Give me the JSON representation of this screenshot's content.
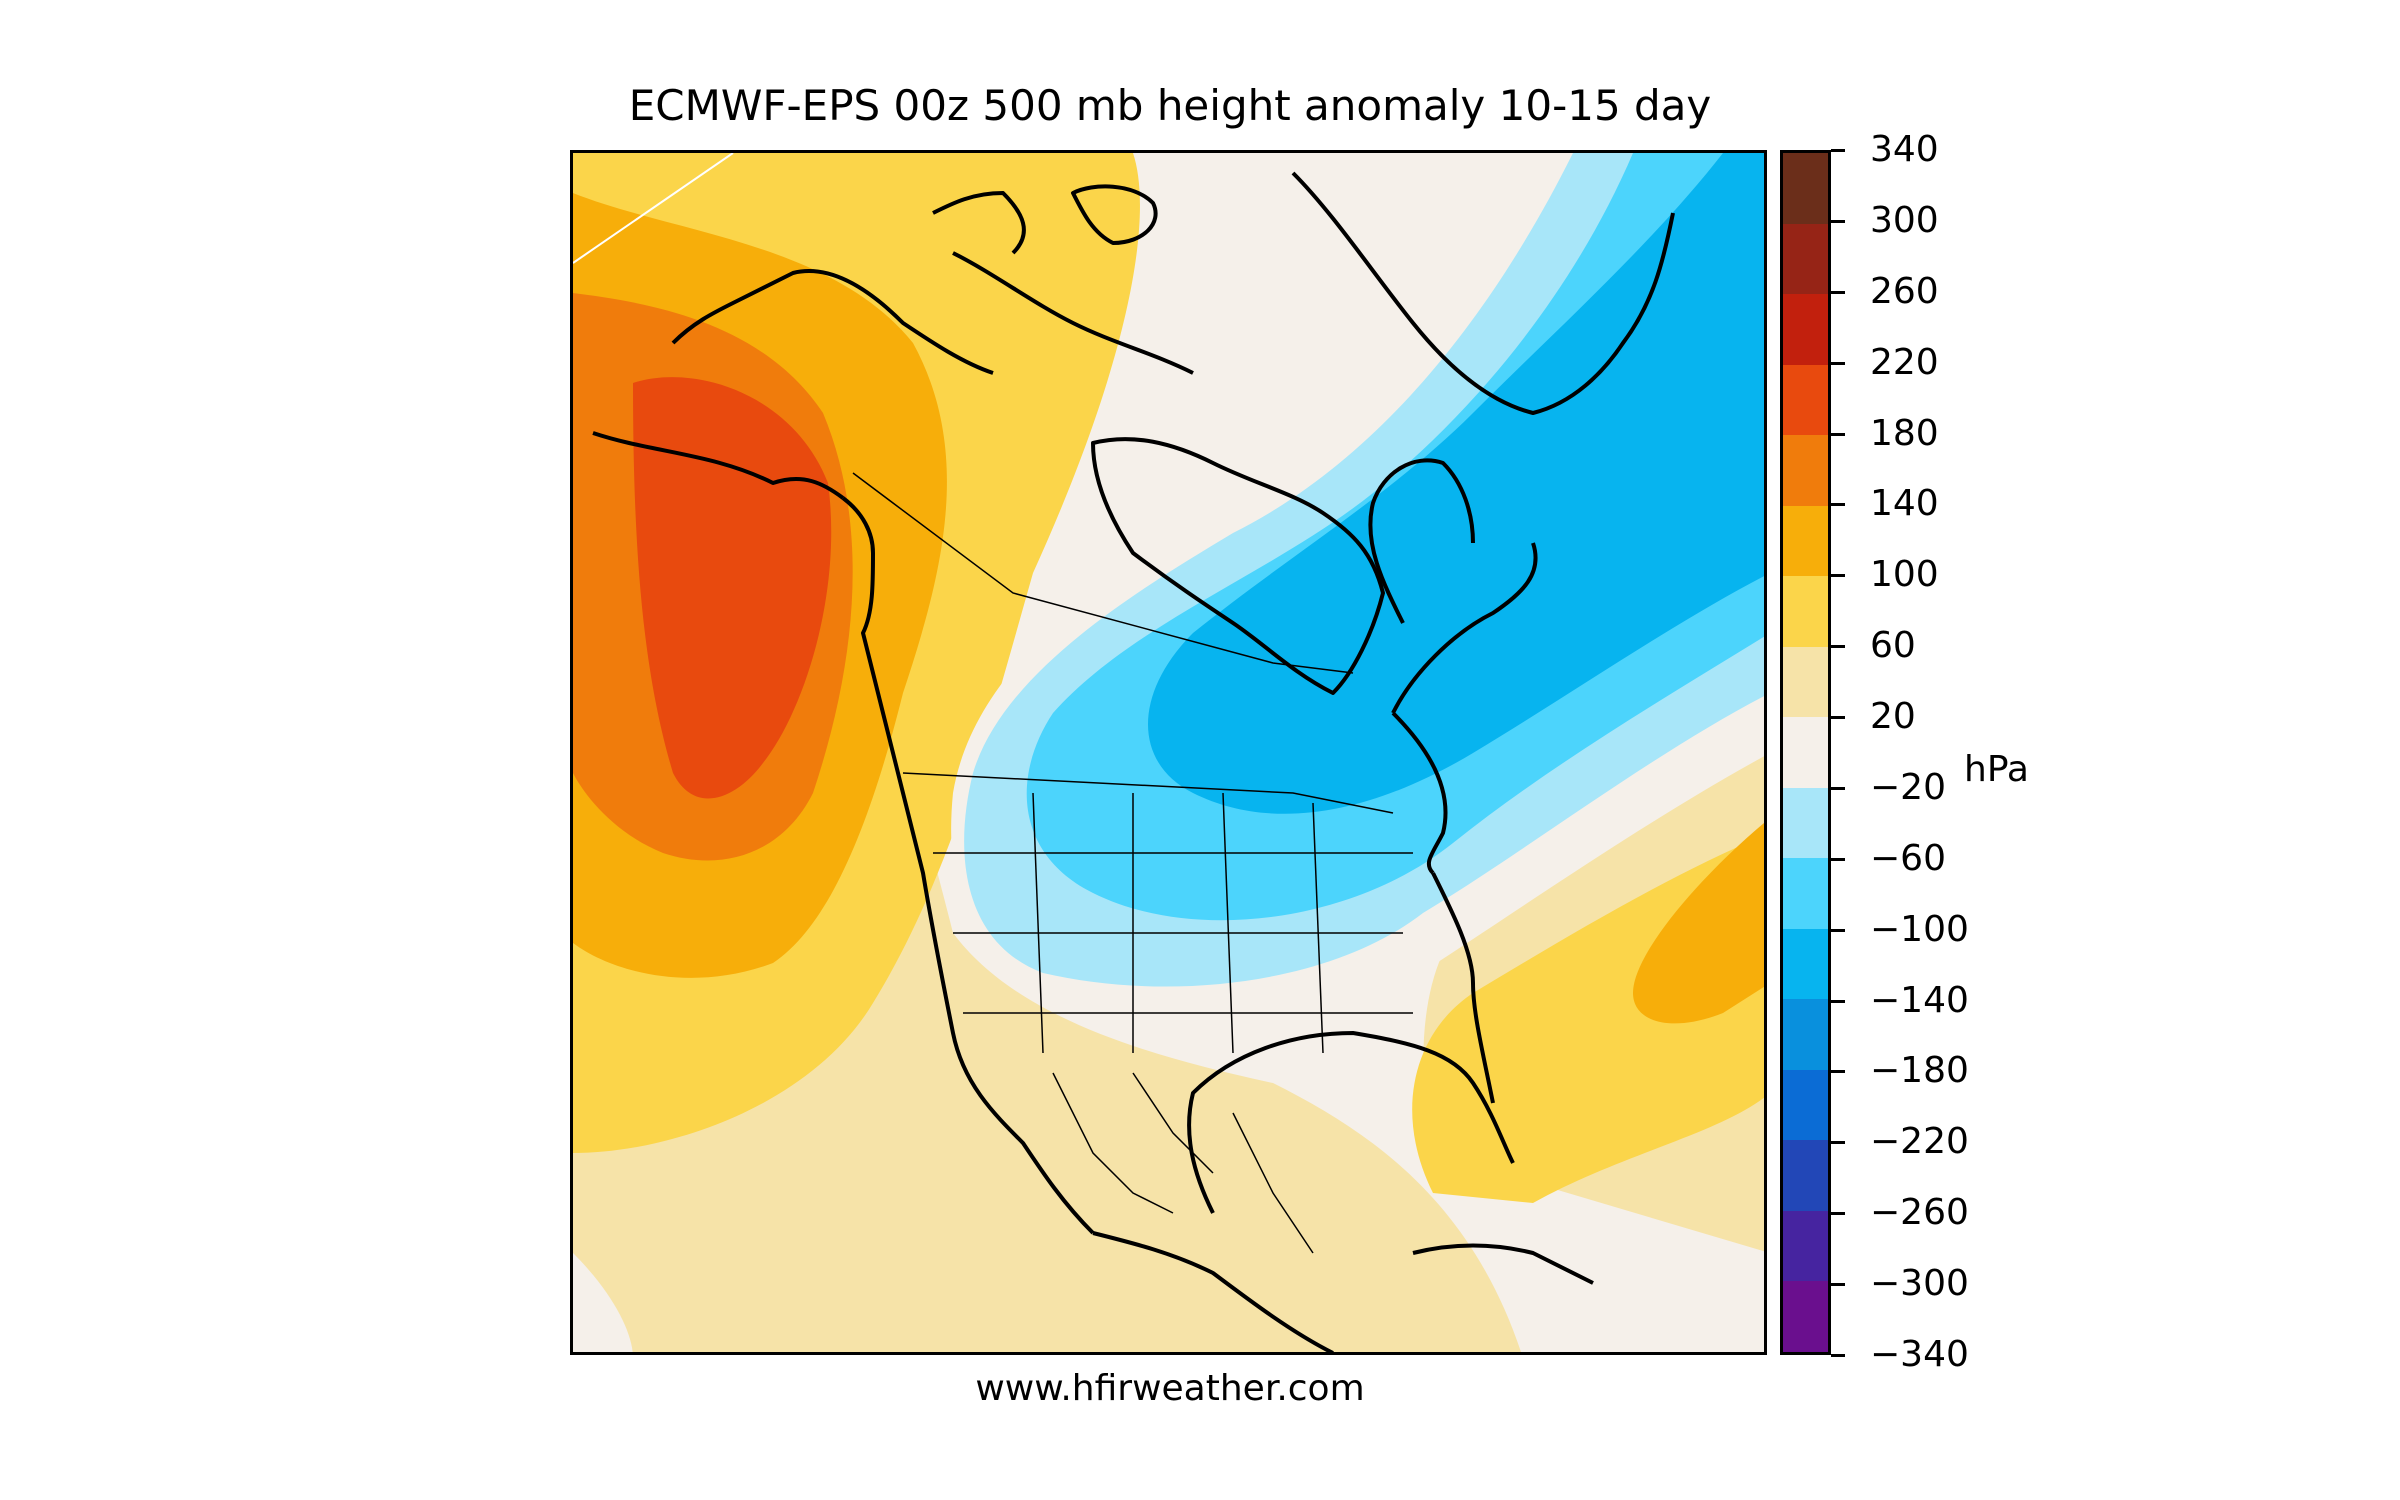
{
  "title": "ECMWF-EPS 00z 500 mb height anomaly 10-15 day",
  "footer": "www.hfirweather.com",
  "colorbar": {
    "unit": "hPa",
    "ticks": [
      "340",
      "300",
      "260",
      "220",
      "180",
      "140",
      "100",
      "60",
      "20",
      "−20",
      "−60",
      "−100",
      "−140",
      "−180",
      "−220",
      "−260",
      "−300",
      "−340"
    ],
    "colors": [
      "#6b2e1a",
      "#962416",
      "#c2200d",
      "#e84a0e",
      "#f07c0c",
      "#f7ae0a",
      "#fbd54a",
      "#f6e3a8",
      "#f5f0ea",
      "#a8e6f9",
      "#4cd4fc",
      "#07b4ef",
      "#0990dd",
      "#0b6cd5",
      "#2247b7",
      "#4624a0",
      "#6a0f8e"
    ]
  },
  "map": {
    "region": "North America",
    "variable": "500 mb height anomaly",
    "features": [
      "anomaly-ridge-alaska",
      "anomaly-trough-central-canada",
      "anomaly-ridge-atlantic"
    ]
  }
}
